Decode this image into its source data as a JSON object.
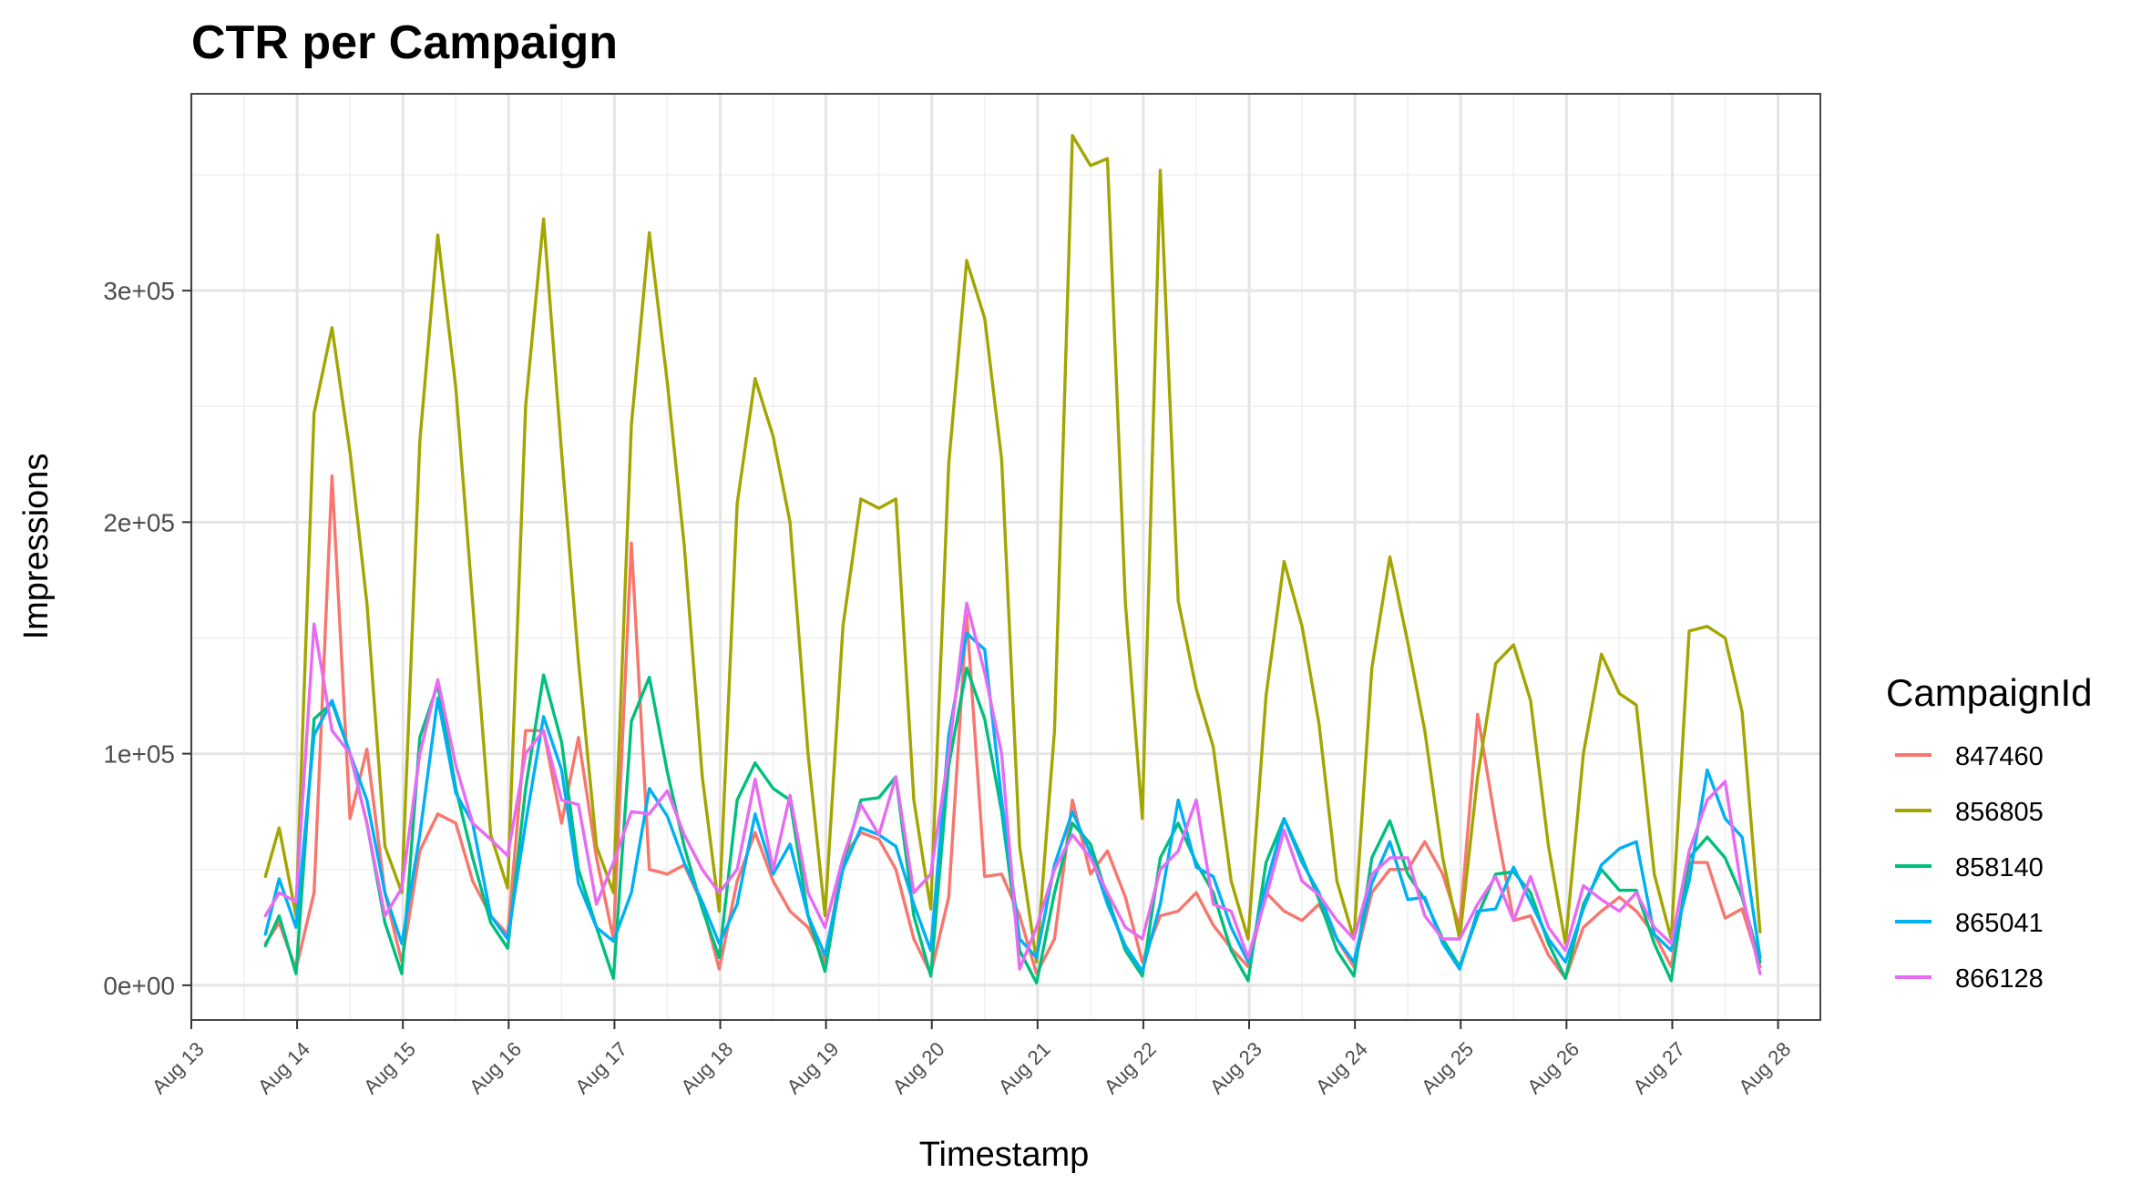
{
  "chart_data": {
    "type": "line",
    "title": "CTR per Campaign",
    "xlabel": "Timestamp",
    "ylabel": "Impressions",
    "legend_title": "CampaignId",
    "legend_position": "right",
    "grid": true,
    "x_unit": "days (Aug 13 = 13)",
    "xlim": [
      13,
      28.4
    ],
    "ylim": [
      -15000,
      385000
    ],
    "x_ticks": [
      {
        "value": 13,
        "label": "Aug 13"
      },
      {
        "value": 14,
        "label": "Aug 14"
      },
      {
        "value": 15,
        "label": "Aug 15"
      },
      {
        "value": 16,
        "label": "Aug 16"
      },
      {
        "value": 17,
        "label": "Aug 17"
      },
      {
        "value": 18,
        "label": "Aug 18"
      },
      {
        "value": 19,
        "label": "Aug 19"
      },
      {
        "value": 20,
        "label": "Aug 20"
      },
      {
        "value": 21,
        "label": "Aug 21"
      },
      {
        "value": 22,
        "label": "Aug 22"
      },
      {
        "value": 23,
        "label": "Aug 23"
      },
      {
        "value": 24,
        "label": "Aug 24"
      },
      {
        "value": 25,
        "label": "Aug 25"
      },
      {
        "value": 26,
        "label": "Aug 26"
      },
      {
        "value": 27,
        "label": "Aug 27"
      },
      {
        "value": 28,
        "label": "Aug 28"
      }
    ],
    "y_ticks": [
      {
        "value": 0,
        "label": "0e+00"
      },
      {
        "value": 100000,
        "label": "1e+05"
      },
      {
        "value": 200000,
        "label": "2e+05"
      },
      {
        "value": 300000,
        "label": "3e+05"
      }
    ],
    "x": [
      13.7,
      13.83,
      13.99,
      14.16,
      14.33,
      14.5,
      14.66,
      14.83,
      14.99,
      15.16,
      15.33,
      15.5,
      15.66,
      15.83,
      15.99,
      16.16,
      16.33,
      16.5,
      16.66,
      16.83,
      16.99,
      17.16,
      17.33,
      17.5,
      17.66,
      17.83,
      17.99,
      18.16,
      18.33,
      18.5,
      18.66,
      18.83,
      18.99,
      19.16,
      19.33,
      19.5,
      19.66,
      19.83,
      19.99,
      20.16,
      20.33,
      20.5,
      20.66,
      20.83,
      20.99,
      21.16,
      21.33,
      21.5,
      21.66,
      21.83,
      21.99,
      22.16,
      22.33,
      22.5,
      22.66,
      22.83,
      22.99,
      23.16,
      23.33,
      23.5,
      23.66,
      23.83,
      23.99,
      24.16,
      24.33,
      24.5,
      24.66,
      24.83,
      24.99,
      25.16,
      25.33,
      25.5,
      25.66,
      25.83,
      25.99,
      26.16,
      26.33,
      26.5,
      26.66,
      26.83,
      26.99,
      27.16,
      27.33,
      27.5,
      27.66,
      27.83
    ],
    "series": [
      {
        "name": "847460",
        "color": "#F8766D",
        "values": [
          18000,
          27000,
          7000,
          40000,
          220000,
          72000,
          102000,
          40000,
          10000,
          58000,
          74000,
          70000,
          45000,
          30000,
          22000,
          110000,
          110000,
          70000,
          107000,
          55000,
          20000,
          191000,
          50000,
          48000,
          52000,
          35000,
          7000,
          45000,
          66000,
          45000,
          32000,
          25000,
          10000,
          55000,
          66000,
          63000,
          50000,
          20000,
          5000,
          38000,
          160000,
          47000,
          48000,
          30000,
          5000,
          20000,
          80000,
          48000,
          58000,
          38000,
          10000,
          30000,
          32000,
          40000,
          26000,
          16000,
          8000,
          40000,
          32000,
          28000,
          35000,
          20000,
          8000,
          40000,
          50000,
          50000,
          62000,
          48000,
          25000,
          117000,
          70000,
          28000,
          30000,
          13000,
          3000,
          25000,
          32000,
          38000,
          32000,
          22000,
          8000,
          53000,
          53000,
          29000,
          33000,
          8000
        ]
      },
      {
        "name": "856805",
        "color": "#A3A500",
        "values": [
          47000,
          68000,
          30000,
          247000,
          284000,
          230000,
          165000,
          60000,
          40000,
          235000,
          324000,
          258000,
          165000,
          65000,
          42000,
          250000,
          331000,
          230000,
          140000,
          60000,
          40000,
          242000,
          325000,
          260000,
          190000,
          90000,
          32000,
          208000,
          262000,
          237000,
          200000,
          100000,
          30000,
          155000,
          210000,
          206000,
          210000,
          80000,
          33000,
          225000,
          313000,
          288000,
          227000,
          60000,
          10000,
          110000,
          367000,
          354000,
          357000,
          165000,
          72000,
          352000,
          166000,
          128000,
          103000,
          45000,
          20000,
          125000,
          183000,
          155000,
          113000,
          45000,
          20000,
          137000,
          185000,
          148000,
          110000,
          55000,
          20000,
          90000,
          139000,
          147000,
          123000,
          60000,
          18000,
          100000,
          143000,
          126000,
          121000,
          48000,
          20000,
          153000,
          155000,
          150000,
          118000,
          23000
        ]
      },
      {
        "name": "858140",
        "color": "#00BF7D",
        "values": [
          17000,
          30000,
          5000,
          115000,
          122000,
          100000,
          70000,
          27000,
          5000,
          107000,
          130000,
          85000,
          55000,
          27000,
          16000,
          85000,
          134000,
          105000,
          50000,
          25000,
          3000,
          114000,
          133000,
          92000,
          60000,
          33000,
          12000,
          80000,
          96000,
          85000,
          80000,
          30000,
          6000,
          52000,
          80000,
          81000,
          90000,
          30000,
          4000,
          95000,
          137000,
          115000,
          75000,
          15000,
          1000,
          40000,
          70000,
          61000,
          38000,
          15000,
          4000,
          55000,
          70000,
          53000,
          40000,
          15000,
          2000,
          53000,
          72000,
          55000,
          37000,
          15000,
          4000,
          55000,
          71000,
          48000,
          37000,
          20000,
          8000,
          30000,
          48000,
          49000,
          40000,
          18000,
          3000,
          35000,
          50000,
          41000,
          41000,
          18000,
          2000,
          55000,
          64000,
          55000,
          38000,
          10000
        ]
      },
      {
        "name": "865041",
        "color": "#00B0F6",
        "values": [
          22000,
          46000,
          25000,
          108000,
          123000,
          100000,
          80000,
          40000,
          18000,
          65000,
          124000,
          83000,
          70000,
          30000,
          20000,
          70000,
          116000,
          93000,
          44000,
          25000,
          19000,
          40000,
          85000,
          73000,
          53000,
          36000,
          18000,
          35000,
          74000,
          48000,
          61000,
          30000,
          13000,
          50000,
          68000,
          65000,
          60000,
          35000,
          15000,
          108000,
          152000,
          145000,
          80000,
          20000,
          12000,
          52000,
          75000,
          57000,
          35000,
          17000,
          6000,
          35000,
          80000,
          51000,
          47000,
          25000,
          10000,
          43000,
          72000,
          53000,
          40000,
          20000,
          10000,
          44000,
          62000,
          37000,
          38000,
          18000,
          7000,
          32000,
          33000,
          51000,
          36000,
          20000,
          10000,
          33000,
          52000,
          59000,
          62000,
          22000,
          15000,
          45000,
          93000,
          72000,
          64000,
          12000
        ]
      },
      {
        "name": "866128",
        "color": "#E76BF3",
        "values": [
          30000,
          40000,
          36000,
          156000,
          110000,
          100000,
          70000,
          30000,
          42000,
          100000,
          132000,
          95000,
          70000,
          63000,
          56000,
          100000,
          110000,
          80000,
          78000,
          35000,
          53000,
          75000,
          74000,
          84000,
          65000,
          50000,
          40000,
          50000,
          89000,
          50000,
          82000,
          40000,
          25000,
          55000,
          78000,
          65000,
          90000,
          40000,
          48000,
          100000,
          165000,
          135000,
          100000,
          7000,
          25000,
          50000,
          65000,
          55000,
          40000,
          25000,
          20000,
          50000,
          58000,
          80000,
          35000,
          32000,
          12000,
          38000,
          67000,
          45000,
          39000,
          28000,
          20000,
          48000,
          55000,
          55000,
          30000,
          20000,
          20000,
          35000,
          47000,
          28000,
          47000,
          25000,
          15000,
          43000,
          37000,
          32000,
          40000,
          25000,
          18000,
          58000,
          80000,
          88000,
          40000,
          5000
        ]
      }
    ]
  }
}
